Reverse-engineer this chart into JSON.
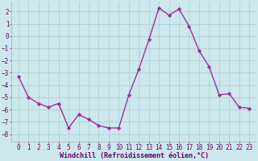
{
  "x": [
    0,
    1,
    2,
    3,
    4,
    5,
    6,
    7,
    8,
    9,
    10,
    11,
    12,
    13,
    14,
    15,
    16,
    17,
    18,
    19,
    20,
    21,
    22,
    23
  ],
  "y": [
    -3.3,
    -5.0,
    -5.5,
    -5.8,
    -5.5,
    -7.5,
    -6.4,
    -6.8,
    -7.3,
    -7.5,
    -7.5,
    -4.8,
    -2.7,
    -0.3,
    2.3,
    1.7,
    2.2,
    0.8,
    -1.2,
    -2.5,
    -4.8,
    -4.7,
    -5.8,
    -5.9
  ],
  "line_color": "#993399",
  "marker": "D",
  "markersize": 2.2,
  "linewidth": 1.0,
  "bg_color": "#cce8ee",
  "grid_color": "#aacccc",
  "xlabel": "Windchill (Refroidissement éolien,°C)",
  "xlabel_fontsize": 6.0,
  "tick_fontsize": 5.5,
  "ylim": [
    -8.6,
    2.8
  ],
  "yticks": [
    -8,
    -7,
    -6,
    -5,
    -4,
    -3,
    -2,
    -1,
    0,
    1,
    2
  ],
  "xticks": [
    0,
    1,
    2,
    3,
    4,
    5,
    6,
    7,
    8,
    9,
    10,
    11,
    12,
    13,
    14,
    15,
    16,
    17,
    18,
    19,
    20,
    21,
    22,
    23
  ]
}
